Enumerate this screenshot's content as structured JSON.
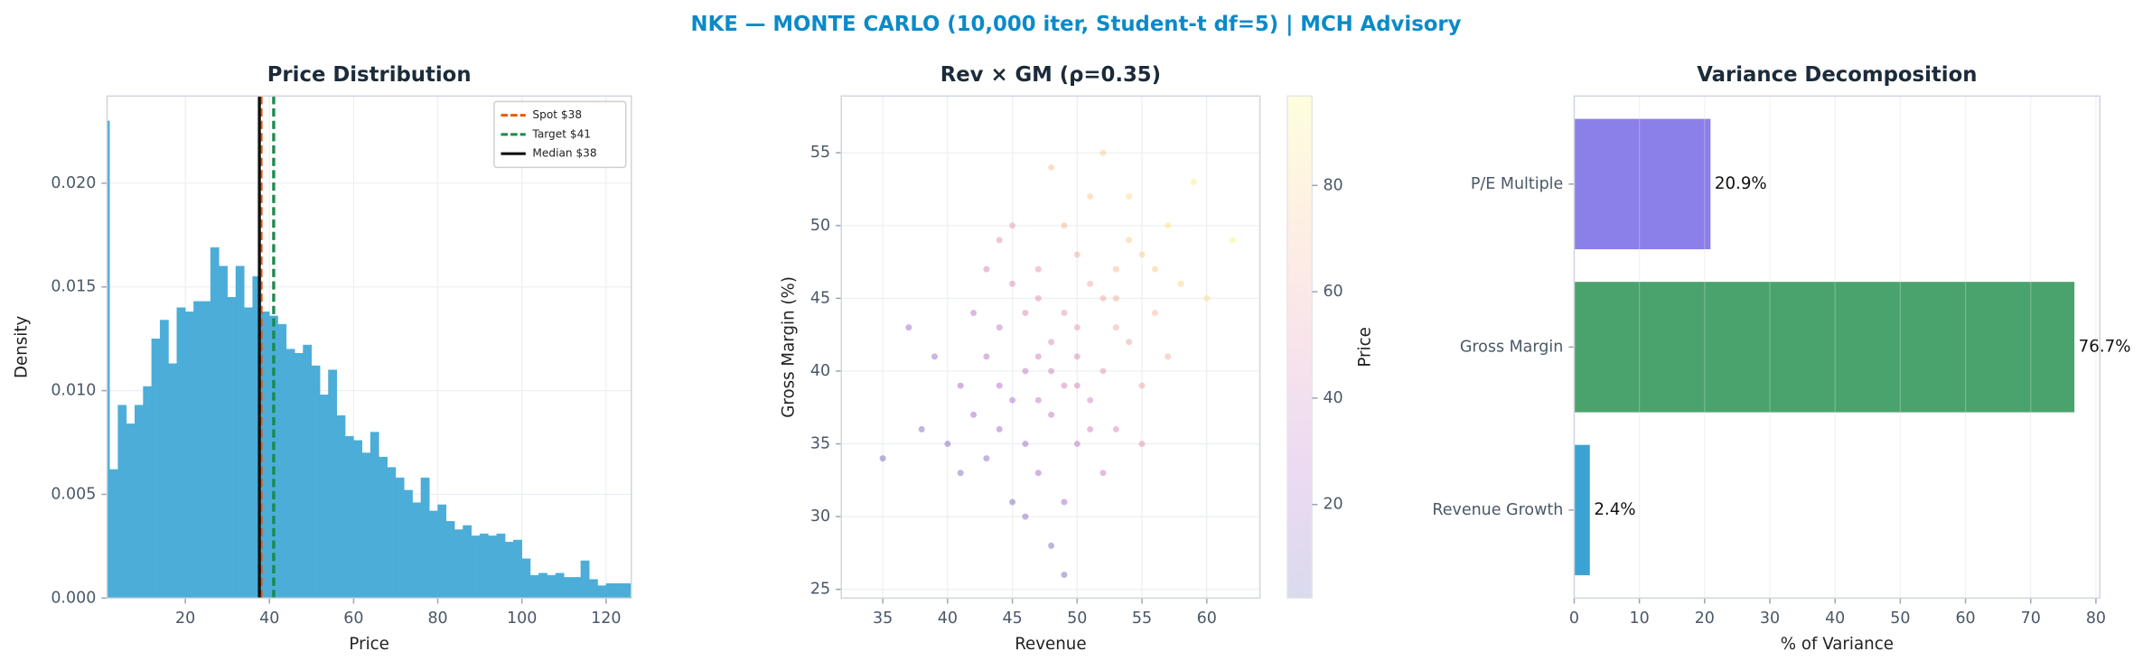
{
  "title": "NKE — MONTE CARLO (10,000 iter, Student-t df=5) | MCH Advisory",
  "chart_data": [
    {
      "type": "histogram",
      "title": "Price Distribution",
      "xlabel": "Price",
      "ylabel": "Density",
      "bins": [
        1.5,
        2,
        4,
        6,
        8,
        10,
        12,
        14,
        16,
        18,
        20,
        22,
        24,
        26,
        28,
        30,
        32,
        34,
        36,
        38,
        40,
        42,
        44,
        46,
        48,
        50,
        52,
        54,
        56,
        58,
        60,
        62,
        64,
        66,
        68,
        70,
        72,
        74,
        76,
        78,
        80,
        82,
        84,
        86,
        88,
        90,
        92,
        94,
        96,
        98,
        100,
        102,
        104,
        106,
        108,
        110,
        112,
        114,
        116,
        118,
        120,
        122,
        124,
        126
      ],
      "counts": [
        0.023,
        0.0062,
        0.0093,
        0.0084,
        0.0093,
        0.0102,
        0.0125,
        0.0134,
        0.0113,
        0.014,
        0.0138,
        0.0143,
        0.0143,
        0.0169,
        0.016,
        0.0145,
        0.016,
        0.014,
        0.0155,
        0.0138,
        0.0136,
        0.0132,
        0.012,
        0.0118,
        0.0122,
        0.0112,
        0.0098,
        0.011,
        0.0088,
        0.0078,
        0.0076,
        0.007,
        0.008,
        0.0068,
        0.0063,
        0.0058,
        0.0052,
        0.0046,
        0.0058,
        0.0042,
        0.0045,
        0.0037,
        0.0033,
        0.0035,
        0.003,
        0.0031,
        0.003,
        0.0031,
        0.0027,
        0.0028,
        0.0019,
        0.0011,
        0.0012,
        0.0011,
        0.0012,
        0.001,
        0.001,
        0.0018,
        0.0009,
        0.0006,
        0.0007,
        0.0007,
        0.0007
      ],
      "color": "#4badd8",
      "xlim": [
        1.4,
        126
      ],
      "xticks": [
        20,
        40,
        60,
        80,
        100,
        120
      ],
      "ylim": [
        0,
        0.0242
      ],
      "yticks": [
        {
          "value": 0,
          "label": "0.000"
        },
        {
          "value": 0.005,
          "label": "0.005"
        },
        {
          "value": 0.01,
          "label": "0.010"
        },
        {
          "value": 0.015,
          "label": "0.015"
        },
        {
          "value": 0.02,
          "label": "0.020"
        }
      ],
      "grid": true,
      "legend": "upper right",
      "vlines": [
        {
          "name": "Spot $38",
          "value": 38,
          "color": "#e8590c",
          "style": "dashed"
        },
        {
          "name": "Target $41",
          "value": 41,
          "color": "#1b8a4a",
          "style": "dashed"
        },
        {
          "name": "Median $38",
          "value": 37.6,
          "color": "#111111",
          "style": "solid"
        }
      ]
    },
    {
      "type": "scatter",
      "title": "Rev × GM (ρ=0.35)",
      "xlabel": "Revenue",
      "ylabel": "Gross Margin (%)",
      "x": [
        48,
        45,
        50,
        52,
        44,
        47,
        49,
        53,
        46,
        51,
        42,
        55,
        43,
        50,
        47,
        54,
        45,
        49,
        56,
        41,
        48,
        52,
        44,
        51,
        46,
        53,
        39,
        57,
        47,
        50,
        45,
        58,
        43,
        49,
        55,
        40,
        51,
        46,
        54,
        48,
        42,
        60,
        38,
        52,
        47,
        50,
        44,
        56,
        49,
        53,
        35,
        62,
        45,
        51,
        48,
        43,
        57,
        46,
        54,
        41,
        49,
        59,
        37,
        52,
        48,
        55,
        44,
        50,
        47,
        53
      ],
      "y": [
        40,
        38,
        43,
        45,
        36,
        41,
        39,
        47,
        44,
        38,
        37,
        48,
        41,
        35,
        33,
        42,
        46,
        50,
        44,
        39,
        37,
        40,
        43,
        46,
        35,
        36,
        41,
        50,
        47,
        41,
        31,
        46,
        34,
        44,
        39,
        35,
        52,
        40,
        49,
        28,
        44,
        45,
        36,
        33,
        45,
        48,
        39,
        47,
        31,
        43,
        34,
        49,
        50,
        36,
        42,
        47,
        41,
        30,
        52,
        33,
        26,
        53,
        43,
        55,
        54,
        35,
        49,
        39,
        38,
        45
      ],
      "c": [
        40,
        28,
        55,
        62,
        22,
        40,
        40,
        70,
        45,
        44,
        20,
        80,
        30,
        32,
        22,
        60,
        48,
        68,
        70,
        21,
        32,
        52,
        35,
        63,
        20,
        46,
        18,
        88,
        52,
        46,
        10,
        80,
        14,
        52,
        60,
        12,
        76,
        33,
        78,
        8,
        32,
        85,
        10,
        38,
        48,
        63,
        27,
        78,
        22,
        62,
        5,
        95,
        55,
        40,
        45,
        42,
        65,
        12,
        85,
        10,
        5,
        93,
        20,
        80,
        72,
        50,
        48,
        42,
        34,
        66
      ],
      "cmap": "plasma",
      "alpha": 0.3,
      "xlim": [
        31.8,
        64.1
      ],
      "xticks": [
        35,
        40,
        45,
        50,
        55,
        60
      ],
      "ylim": [
        24.4,
        58.9
      ],
      "yticks": [
        25,
        30,
        35,
        40,
        45,
        50,
        55
      ],
      "grid": true,
      "colorbar": {
        "label": "Price",
        "lim": [
          2.4,
          96.8
        ],
        "ticks": [
          20,
          40,
          60,
          80
        ]
      }
    },
    {
      "type": "barh",
      "title": "Variance Decomposition",
      "xlabel": "% of Variance",
      "categories": [
        "Revenue Growth",
        "Gross Margin",
        "P/E Multiple"
      ],
      "values": [
        2.4,
        76.7,
        20.9
      ],
      "value_labels": [
        "2.4%",
        "76.7%",
        "20.9%"
      ],
      "colors": [
        "#3ba3d4",
        "#4aa36c",
        "#8b7fea"
      ],
      "xlim": [
        0,
        80.6
      ],
      "xticks": [
        0,
        10,
        20,
        30,
        40,
        50,
        60,
        70,
        80
      ],
      "grid": true
    }
  ]
}
